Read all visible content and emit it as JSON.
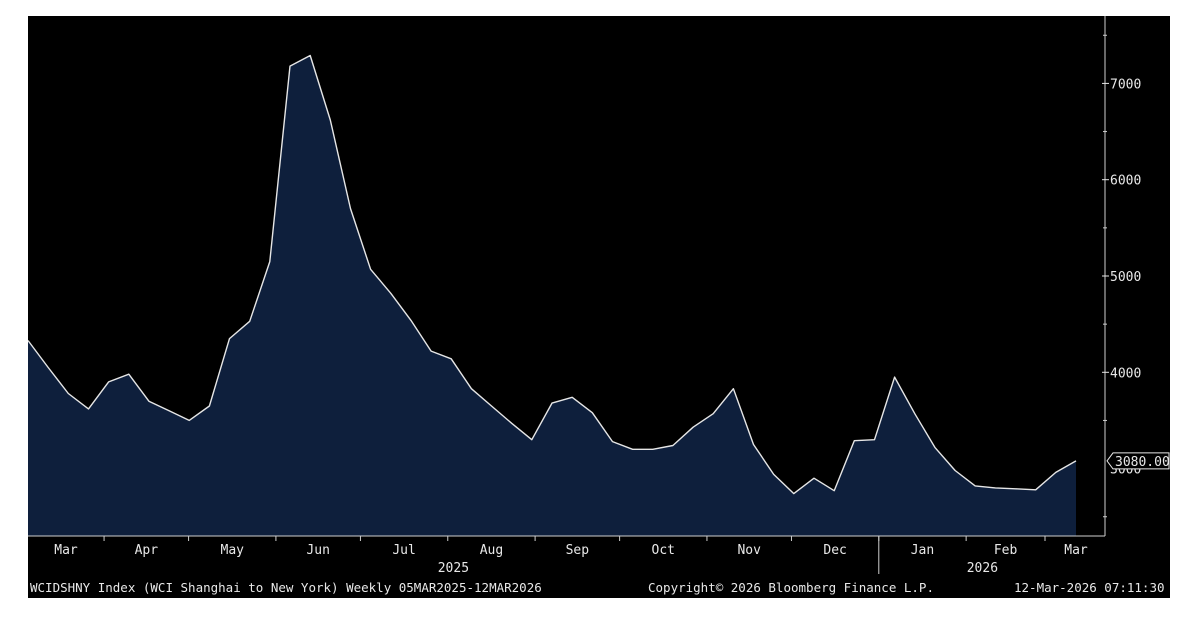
{
  "chart_data": {
    "type": "area",
    "title": "",
    "xlabel": "",
    "ylabel": "",
    "series": [
      {
        "values": [
          4330,
          4050,
          3780,
          3620,
          3900,
          3980,
          3700,
          3600,
          3500,
          3650,
          4350,
          4530,
          5150,
          7180,
          7290,
          6620,
          5700,
          5070,
          4820,
          4540,
          4220,
          4140,
          3830,
          3650,
          3470,
          3300,
          3680,
          3740,
          3580,
          3280,
          3200,
          3200,
          3240,
          3430,
          3570,
          3830,
          3250,
          2940,
          2740,
          2900,
          2770,
          3290,
          3300,
          3950,
          3570,
          3220,
          2980,
          2820,
          2800,
          2790,
          2780,
          2960,
          3080
        ]
      }
    ],
    "x_start": "2025-03-05",
    "x_end": "2026-03-12",
    "ylim": [
      2300,
      7700
    ],
    "yticks": [
      4000,
      5000,
      6000,
      7000
    ],
    "yticks_partial": [
      "3000"
    ],
    "last_value_label": "3080.00",
    "x_month_labels": [
      "Mar",
      "Apr",
      "May",
      "Jun",
      "Jul",
      "Aug",
      "Sep",
      "Oct",
      "Nov",
      "Dec",
      "Jan",
      "Feb",
      "Mar"
    ],
    "x_year_labels": [
      "2025",
      "2026"
    ],
    "colors": {
      "background": "#000000",
      "fill": "#0e1f3c",
      "line": "#e6e6e6",
      "text": "#e8e8e8"
    }
  },
  "footer": {
    "index_label": "WCIDSHNY Index (WCI Shanghai to New York) Weekly 05MAR2025-12MAR2026",
    "copyright": "Copyright© 2026 Bloomberg Finance L.P.",
    "timestamp": "12-Mar-2026 07:11:30"
  }
}
